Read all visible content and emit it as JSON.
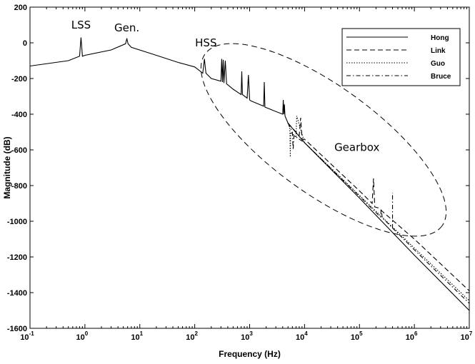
{
  "chart_data": {
    "type": "line",
    "title": "",
    "xlabel": "Frequency  (Hz)",
    "ylabel": "Magnitude (dB)",
    "xscale": "log",
    "xlim": [
      0.1,
      10000000
    ],
    "ylim": [
      -1600,
      200
    ],
    "grid": false,
    "legend_position": "top-right",
    "x_ticks": [
      {
        "base": "10",
        "exp": "-1"
      },
      {
        "base": "10",
        "exp": "0"
      },
      {
        "base": "10",
        "exp": "1"
      },
      {
        "base": "10",
        "exp": "2"
      },
      {
        "base": "10",
        "exp": "3"
      },
      {
        "base": "10",
        "exp": "4"
      },
      {
        "base": "10",
        "exp": "5"
      },
      {
        "base": "10",
        "exp": "6"
      },
      {
        "base": "10",
        "exp": "7"
      }
    ],
    "y_ticks": [
      "200",
      "0",
      "-200",
      "-400",
      "-600",
      "-800",
      "-1000",
      "-1200",
      "-1400",
      "-1600"
    ],
    "series": [
      {
        "name": "Hong",
        "dash": "solid",
        "x": [
          0.1,
          0.5,
          0.8,
          0.85,
          0.9,
          1.0,
          3.0,
          5.5,
          5.8,
          6.1,
          7.0,
          20,
          50,
          100,
          140,
          150,
          160,
          200,
          300,
          310,
          320,
          330,
          340,
          360,
          380,
          400,
          500,
          700,
          720,
          740,
          900,
          950,
          1000,
          1050,
          1500,
          1800,
          1850,
          1900,
          2500,
          4000,
          4100,
          4200,
          4300,
          4400,
          5000,
          10000,
          100000,
          1000000,
          10000000
        ],
        "y": [
          -130,
          -100,
          -75,
          30,
          -75,
          -70,
          -40,
          -5,
          25,
          -5,
          -25,
          -70,
          -110,
          -135,
          -170,
          -90,
          -170,
          -200,
          -215,
          -90,
          -220,
          -95,
          -225,
          -100,
          -230,
          -235,
          -260,
          -290,
          -160,
          -290,
          -310,
          -180,
          -320,
          -325,
          -345,
          -355,
          -220,
          -360,
          -375,
          -400,
          -320,
          -400,
          -345,
          -410,
          -450,
          -560,
          -870,
          -1190,
          -1500
        ]
      },
      {
        "name": "Link",
        "dash": "dashed",
        "x": [
          5000,
          8000,
          8500,
          9000,
          10000,
          100000,
          170000,
          180000,
          190000,
          220000,
          1000000,
          10000000
        ],
        "y": [
          -450,
          -520,
          -420,
          -540,
          -540,
          -830,
          -900,
          -760,
          -920,
          -925,
          -1100,
          -1390
        ]
      },
      {
        "name": "Guo",
        "dash": "dotted",
        "x": [
          5000,
          5400,
          5500,
          5600,
          6500,
          7000,
          7200,
          10000,
          100000,
          1000000,
          10000000
        ],
        "y": [
          -450,
          -480,
          -640,
          -500,
          -520,
          -530,
          -410,
          -560,
          -855,
          -1150,
          -1445
        ]
      },
      {
        "name": "Bruce",
        "dash": "dashdot",
        "x": [
          5000,
          6000,
          6200,
          6400,
          10000,
          100000,
          240000,
          250000,
          260000,
          280000,
          1000000,
          10000000
        ],
        "y": [
          -450,
          -500,
          -600,
          -520,
          -560,
          -860,
          -975,
          -930,
          -985,
          -990,
          -1160,
          -1460
        ]
      }
    ],
    "annotations": [
      {
        "text": "LSS",
        "x": 0.85,
        "y": 80
      },
      {
        "text": "Gen.",
        "x": 5.8,
        "y": 65
      },
      {
        "text": "HSS",
        "x": 160,
        "y": -20
      },
      {
        "text": "Gearbox",
        "x": 90000,
        "y": -605
      }
    ],
    "extra_spike": {
      "x": 400000,
      "y_base": -1040,
      "y_top": -840
    }
  }
}
